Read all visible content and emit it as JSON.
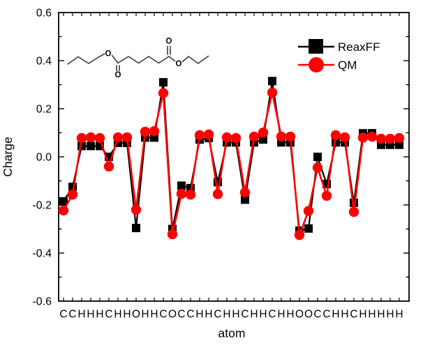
{
  "chart_data": {
    "type": "line",
    "title": "",
    "xlabel": "atom",
    "ylabel": "Charge",
    "ylim": [
      -0.6,
      0.6
    ],
    "ytick_interval": 0.2,
    "ytick_labels": [
      "0.6",
      "0.4",
      "0.2",
      "0.0",
      "-0.2",
      "-0.4",
      "-0.6"
    ],
    "grid": false,
    "legend_position": "top-right",
    "categories": [
      "C",
      "C",
      "H",
      "H",
      "H",
      "C",
      "H",
      "H",
      "O",
      "H",
      "H",
      "C",
      "O",
      "C",
      "C",
      "H",
      "H",
      "C",
      "H",
      "H",
      "C",
      "H",
      "H",
      "C",
      "H",
      "H",
      "O",
      "O",
      "C",
      "C",
      "H",
      "H",
      "C",
      "H",
      "H",
      "H",
      "H",
      "H"
    ],
    "series": [
      {
        "name": "ReaxFF",
        "marker": "square",
        "color": "#000000",
        "values": [
          -0.185,
          -0.125,
          0.045,
          0.045,
          0.045,
          0.0,
          0.058,
          0.058,
          -0.296,
          0.08,
          0.08,
          0.31,
          -0.3,
          -0.12,
          -0.13,
          0.072,
          0.078,
          -0.105,
          0.06,
          0.06,
          -0.178,
          0.06,
          0.072,
          0.315,
          0.06,
          0.06,
          -0.307,
          -0.298,
          0.0,
          -0.113,
          0.06,
          0.06,
          -0.191,
          0.098,
          0.098,
          0.05,
          0.05,
          0.05
        ]
      },
      {
        "name": "QM",
        "marker": "circle",
        "color": "#ff0000",
        "values": [
          -0.223,
          -0.157,
          0.078,
          0.081,
          0.078,
          -0.04,
          0.081,
          0.081,
          -0.22,
          0.104,
          0.107,
          0.265,
          -0.322,
          -0.154,
          -0.157,
          0.09,
          0.093,
          -0.155,
          0.081,
          0.078,
          -0.148,
          0.084,
          0.101,
          0.267,
          0.084,
          0.084,
          -0.325,
          -0.225,
          -0.045,
          -0.162,
          0.09,
          0.081,
          -0.229,
          0.08,
          0.084,
          0.075,
          0.075,
          0.078
        ]
      }
    ]
  },
  "molecule": {
    "o_label": "O",
    "o_color": "#ff1a1a"
  }
}
